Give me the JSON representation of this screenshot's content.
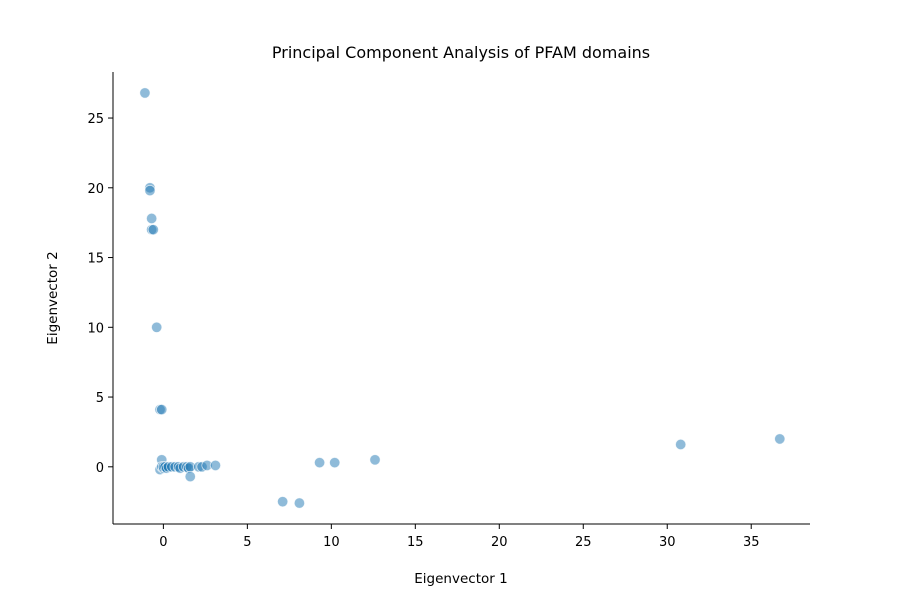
{
  "chart_data": {
    "type": "scatter",
    "title": "Principal Component Analysis of PFAM domains",
    "xlabel": "Eigenvector 1",
    "ylabel": "Eigenvector 2",
    "xlim": [
      -3,
      38.5
    ],
    "ylim": [
      -4.1,
      28.3
    ],
    "xticks": [
      0,
      5,
      10,
      15,
      20,
      25,
      30,
      35
    ],
    "yticks": [
      0,
      5,
      10,
      15,
      20,
      25
    ],
    "grid": false,
    "marker_color": "#1f77b4",
    "marker_alpha": 0.5,
    "marker_edge_color": "#ffffff",
    "points": [
      {
        "x": -1.1,
        "y": 26.8
      },
      {
        "x": -0.8,
        "y": 20.0
      },
      {
        "x": -0.8,
        "y": 19.8
      },
      {
        "x": -0.7,
        "y": 17.8
      },
      {
        "x": -0.7,
        "y": 17.0
      },
      {
        "x": -0.6,
        "y": 17.0
      },
      {
        "x": -0.4,
        "y": 10.0
      },
      {
        "x": -0.2,
        "y": 4.1
      },
      {
        "x": -0.1,
        "y": 4.1
      },
      {
        "x": -0.1,
        "y": 0.5
      },
      {
        "x": -0.2,
        "y": -0.2
      },
      {
        "x": -0.1,
        "y": 0.0
      },
      {
        "x": 0.0,
        "y": -0.1
      },
      {
        "x": 0.0,
        "y": 0.0
      },
      {
        "x": 0.1,
        "y": 0.0
      },
      {
        "x": 0.2,
        "y": -0.1
      },
      {
        "x": 0.3,
        "y": 0.0
      },
      {
        "x": 0.5,
        "y": 0.0
      },
      {
        "x": 0.7,
        "y": 0.0
      },
      {
        "x": 0.9,
        "y": 0.0
      },
      {
        "x": 1.0,
        "y": -0.1
      },
      {
        "x": 1.2,
        "y": 0.0
      },
      {
        "x": 1.4,
        "y": 0.0
      },
      {
        "x": 1.5,
        "y": -0.1
      },
      {
        "x": 1.6,
        "y": 0.0
      },
      {
        "x": 1.6,
        "y": -0.7
      },
      {
        "x": 2.1,
        "y": 0.0
      },
      {
        "x": 2.3,
        "y": 0.0
      },
      {
        "x": 2.6,
        "y": 0.1
      },
      {
        "x": 3.1,
        "y": 0.1
      },
      {
        "x": 7.1,
        "y": -2.5
      },
      {
        "x": 8.1,
        "y": -2.6
      },
      {
        "x": 9.3,
        "y": 0.3
      },
      {
        "x": 10.2,
        "y": 0.3
      },
      {
        "x": 12.6,
        "y": 0.5
      },
      {
        "x": 30.8,
        "y": 1.6
      },
      {
        "x": 36.7,
        "y": 2.0
      }
    ]
  }
}
